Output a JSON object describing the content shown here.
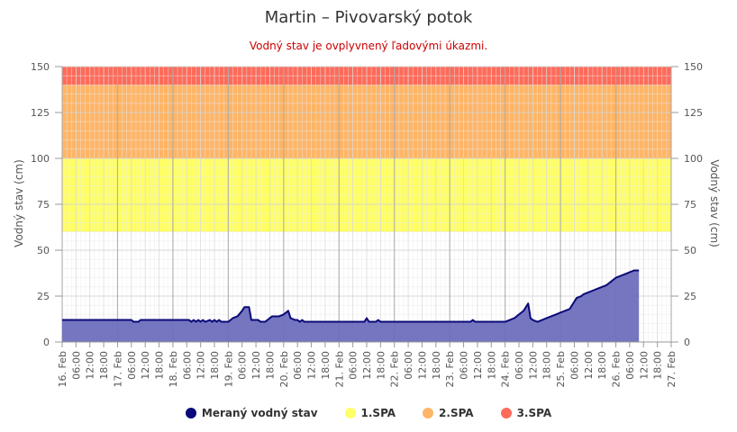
{
  "colors": {
    "measured_fill": "#6f6fbd",
    "measured_line": "#0a0a78",
    "spa1": "#ffff66",
    "spa2": "#ffb566",
    "spa3": "#ff6b5a",
    "grid_major": "#b8b8b8",
    "grid_minor": "#e8e8e8"
  },
  "chart_data": {
    "type": "area",
    "title": "Martin – Pivovarský potok",
    "subtitle": "Vodný stav je ovplyvnený ľadovými úkazmi.",
    "ylabel_left": "Vodný stav (cm)",
    "ylabel_right": "Vodný stav (cm)",
    "ylim": [
      0,
      150
    ],
    "y_ticks": [
      "0",
      "25",
      "50",
      "75",
      "100",
      "125",
      "150"
    ],
    "x_range_hours": [
      0,
      264
    ],
    "x_ticks": [
      "16. Feb",
      "06:00",
      "12:00",
      "18:00",
      "17. Feb",
      "06:00",
      "12:00",
      "18:00",
      "18. Feb",
      "06:00",
      "12:00",
      "18:00",
      "19. Feb",
      "06:00",
      "12:00",
      "18:00",
      "20. Feb",
      "06:00",
      "12:00",
      "18:00",
      "21. Feb",
      "06:00",
      "12:00",
      "18:00",
      "22. Feb",
      "06:00",
      "12:00",
      "18:00",
      "23. Feb",
      "06:00",
      "12:00",
      "18:00",
      "24. Feb",
      "06:00",
      "12:00",
      "18:00",
      "25. Feb",
      "06:00",
      "12:00",
      "18:00",
      "26. Feb",
      "06:00",
      "12:00",
      "18:00",
      "27. Feb"
    ],
    "bands": [
      {
        "name": "1.SPA",
        "from": 60,
        "to": 100
      },
      {
        "name": "2.SPA",
        "from": 100,
        "to": 140
      },
      {
        "name": "3.SPA",
        "from": 140,
        "to": 150
      }
    ],
    "series": [
      {
        "name": "Meraný vodný stav",
        "x_hours": [
          0,
          30,
          31,
          33,
          34,
          55,
          56,
          57,
          58,
          59,
          60,
          61,
          62,
          64,
          65,
          66,
          67,
          68,
          69,
          70,
          72,
          74,
          76,
          78,
          79,
          81,
          82,
          83,
          85,
          86,
          88,
          89,
          91,
          93,
          94,
          96,
          98,
          99,
          101,
          102,
          103,
          104,
          105,
          106,
          108,
          111,
          112,
          113,
          120,
          131,
          132,
          133,
          136,
          137,
          138,
          144,
          177,
          178,
          179,
          192,
          194,
          196,
          197,
          199,
          200,
          201,
          202,
          203,
          204,
          206,
          208,
          210,
          212,
          214,
          216,
          218,
          220,
          221,
          222,
          223,
          225,
          226,
          228,
          230,
          232,
          234,
          236,
          238,
          239,
          240,
          242,
          244,
          246,
          248,
          250
        ],
        "values": [
          12,
          12,
          11,
          11,
          12,
          12,
          11,
          12,
          11,
          12,
          11,
          12,
          11,
          12,
          11,
          12,
          11,
          12,
          11,
          11,
          11,
          13,
          14,
          17,
          19,
          19,
          12,
          12,
          12,
          11,
          11,
          12,
          14,
          14,
          14,
          15,
          17,
          13,
          12,
          12,
          11,
          12,
          11,
          11,
          11,
          11,
          11,
          11,
          11,
          11,
          13,
          11,
          11,
          12,
          11,
          11,
          11,
          12,
          11,
          11,
          12,
          13,
          14,
          16,
          17,
          19,
          21,
          13,
          12,
          11,
          12,
          13,
          14,
          15,
          16,
          17,
          18,
          20,
          22,
          24,
          25,
          26,
          27,
          28,
          29,
          30,
          31,
          33,
          34,
          35,
          36,
          37,
          38,
          39,
          39
        ]
      }
    ],
    "legend": [
      "Meraný vodný stav",
      "1.SPA",
      "2.SPA",
      "3.SPA"
    ]
  }
}
